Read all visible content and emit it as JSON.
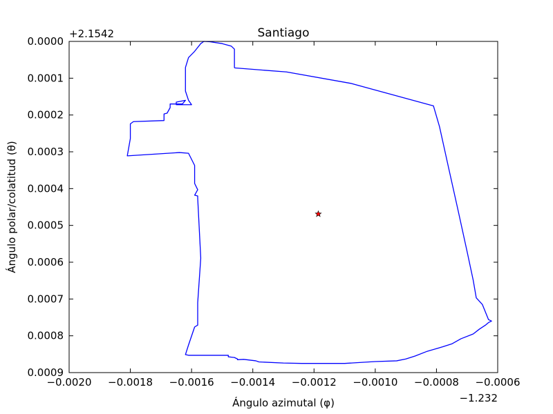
{
  "chart_data": {
    "type": "line",
    "title": "Santiago",
    "xlabel": "Ángulo azimutal (φ)",
    "ylabel": "Ángulo polar/colatitud (θ)",
    "x_offset_label": "−1.232",
    "y_offset_label": "+2.1542",
    "xlim": [
      -0.002,
      -0.0006
    ],
    "ylim": [
      0.0009,
      0.0
    ],
    "y_inverted": true,
    "x_ticks": [
      -0.002,
      -0.0018,
      -0.0016,
      -0.0014,
      -0.0012,
      -0.001,
      -0.0008,
      -0.0006
    ],
    "x_tick_labels": [
      "−0.0020",
      "−0.0018",
      "−0.0016",
      "−0.0014",
      "−0.0012",
      "−0.0010",
      "−0.0008",
      "−0.0006"
    ],
    "y_ticks": [
      0.0,
      0.0001,
      0.0002,
      0.0003,
      0.0004,
      0.0005,
      0.0006,
      0.0007,
      0.0008,
      0.0009
    ],
    "y_tick_labels": [
      "0.0000",
      "0.0001",
      "0.0002",
      "0.0003",
      "0.0004",
      "0.0005",
      "0.0006",
      "0.0007",
      "0.0008",
      "0.0009"
    ],
    "grid": false,
    "series": [
      {
        "color": "#0000ff",
        "x": [
          -0.00146,
          -0.00129,
          -0.00108,
          -0.00082,
          -0.00081,
          -0.00079,
          -0.00076,
          -0.00073,
          -0.0007,
          -0.00068,
          -0.00067,
          -0.00065,
          -0.00063,
          -0.00062,
          -0.00063,
          -0.00064,
          -0.00066,
          -0.00068,
          -0.00072,
          -0.00075,
          -0.00078,
          -0.00083,
          -0.00087,
          -0.0009,
          -0.00093,
          -0.001,
          -0.0011,
          -0.00116,
          -0.00121,
          -0.00124,
          -0.0013,
          -0.00138,
          -0.00139,
          -0.00143,
          -0.00145,
          -0.00145,
          -0.00146,
          -0.00147,
          -0.00148,
          -0.00148,
          -0.00161,
          -0.00162,
          -0.00161,
          -0.00159,
          -0.00158,
          -0.00158,
          -0.00157,
          -0.00158,
          -0.00158,
          -0.00159,
          -0.00158,
          -0.00159,
          -0.00159,
          -0.00159,
          -0.00161,
          -0.00164,
          -0.00181,
          -0.0018,
          -0.0018,
          -0.00179,
          -0.00169,
          -0.00169,
          -0.00168,
          -0.00167,
          -0.00167,
          -0.00163,
          -0.00162,
          -0.00165,
          -0.00165,
          -0.0016,
          -0.00161,
          -0.00162,
          -0.00162,
          -0.00162,
          -0.00161,
          -0.00159,
          -0.00157,
          -0.00156,
          -0.00154,
          -0.0015,
          -0.00147,
          -0.00146,
          -0.00146
        ],
        "y": [
          7.2e-05,
          8.3e-05,
          0.000114,
          0.000173,
          0.000175,
          0.000232,
          0.000345,
          0.000457,
          0.000571,
          0.000649,
          0.000697,
          0.000715,
          0.000756,
          0.00076,
          0.000764,
          0.000771,
          0.000782,
          0.000795,
          0.000808,
          0.000822,
          0.00083,
          0.000842,
          0.000855,
          0.000863,
          0.000868,
          0.00087,
          0.000875,
          0.000875,
          0.000875,
          0.000875,
          0.000874,
          0.000871,
          0.000868,
          0.000864,
          0.000865,
          0.000863,
          0.000859,
          0.000858,
          0.000857,
          0.000853,
          0.000853,
          0.000851,
          0.000825,
          0.000776,
          0.000771,
          0.00071,
          0.000589,
          0.000426,
          0.00042,
          0.000418,
          0.000403,
          0.000386,
          0.000352,
          0.000337,
          0.000304,
          0.000302,
          0.000311,
          0.000264,
          0.000224,
          0.000218,
          0.000215,
          0.000197,
          0.000195,
          0.00018,
          0.00017,
          0.00017,
          0.00016,
          0.000165,
          0.000172,
          0.000172,
          0.00016,
          0.000135,
          0.000121,
          7.1e-05,
          4.4e-05,
          2.7e-05,
          6e-06,
          0.0,
          1e-06,
          6e-06,
          1.3e-05,
          2.1e-05,
          7.2e-05
        ]
      },
      {
        "color": "#ff0000",
        "marker": "star",
        "x": [
          -0.001186
        ],
        "y": [
          0.000469
        ]
      }
    ]
  }
}
